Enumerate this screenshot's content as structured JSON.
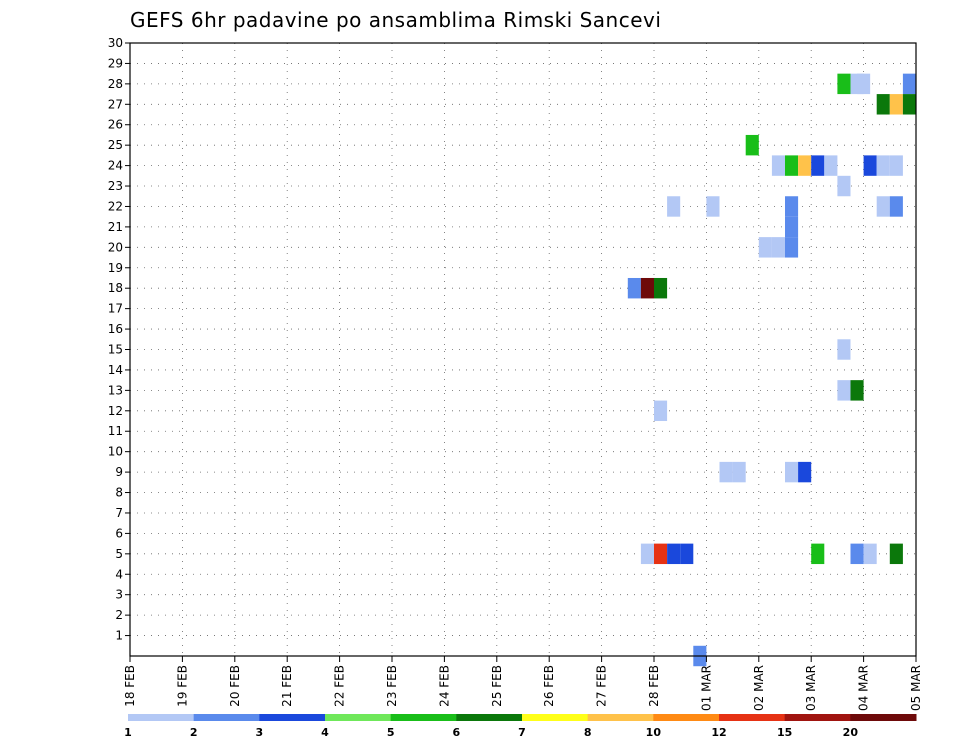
{
  "chart_data": {
    "type": "heatmap",
    "title": "GEFS 6hr padavine po ansamblima Rimski Sancevi",
    "x_ticks": [
      "18 FEB",
      "19 FEB",
      "20 FEB",
      "21 FEB",
      "22 FEB",
      "23 FEB",
      "24 FEB",
      "25 FEB",
      "26 FEB",
      "27 FEB",
      "28 FEB",
      "01 MAR",
      "02 MAR",
      "03 MAR",
      "04 MAR",
      "05 MAR"
    ],
    "y_ticks": [
      1,
      2,
      3,
      4,
      5,
      6,
      7,
      8,
      9,
      10,
      11,
      12,
      13,
      14,
      15,
      16,
      17,
      18,
      19,
      20,
      21,
      22,
      23,
      24,
      25,
      26,
      27,
      28,
      29,
      30
    ],
    "x_range_days": [
      0,
      15
    ],
    "y_range": [
      0,
      30
    ],
    "grid": true,
    "legend": {
      "placement": "bottom",
      "labels": [
        "1",
        "2",
        "3",
        "4",
        "5",
        "6",
        "7",
        "8",
        "10",
        "12",
        "15",
        "20"
      ],
      "colors": [
        "#b3c8f5",
        "#5a8aec",
        "#1a48dc",
        "#6fe85a",
        "#19be19",
        "#0b780b",
        "#ffff19",
        "#ffc24a",
        "#ff8a14",
        "#e63214",
        "#a0140f",
        "#6e0a0a"
      ]
    },
    "cells": [
      {
        "member": 28,
        "day": 13.625,
        "value": 5
      },
      {
        "member": 28,
        "day": 13.875,
        "value": 1
      },
      {
        "member": 28,
        "day": 14.0,
        "value": 1
      },
      {
        "member": 28,
        "day": 14.875,
        "value": 2
      },
      {
        "member": 27,
        "day": 14.375,
        "value": 6
      },
      {
        "member": 27,
        "day": 14.625,
        "value": 8
      },
      {
        "member": 27,
        "day": 14.875,
        "value": 6
      },
      {
        "member": 25,
        "day": 11.875,
        "value": 5
      },
      {
        "member": 24,
        "day": 12.375,
        "value": 1
      },
      {
        "member": 24,
        "day": 12.625,
        "value": 5
      },
      {
        "member": 24,
        "day": 12.875,
        "value": 8
      },
      {
        "member": 24,
        "day": 13.125,
        "value": 3
      },
      {
        "member": 24,
        "day": 13.375,
        "value": 1
      },
      {
        "member": 24,
        "day": 14.125,
        "value": 3
      },
      {
        "member": 24,
        "day": 14.375,
        "value": 1
      },
      {
        "member": 24,
        "day": 14.625,
        "value": 1
      },
      {
        "member": 23,
        "day": 13.625,
        "value": 1
      },
      {
        "member": 22,
        "day": 10.375,
        "value": 1
      },
      {
        "member": 22,
        "day": 11.125,
        "value": 1
      },
      {
        "member": 22,
        "day": 12.625,
        "value": 2
      },
      {
        "member": 22,
        "day": 14.375,
        "value": 1
      },
      {
        "member": 22,
        "day": 14.625,
        "value": 2
      },
      {
        "member": 21,
        "day": 12.625,
        "value": 2
      },
      {
        "member": 20,
        "day": 12.125,
        "value": 1
      },
      {
        "member": 20,
        "day": 12.375,
        "value": 1
      },
      {
        "member": 20,
        "day": 12.625,
        "value": 2
      },
      {
        "member": 18,
        "day": 9.625,
        "value": 2
      },
      {
        "member": 18,
        "day": 9.875,
        "value": 20
      },
      {
        "member": 18,
        "day": 10.125,
        "value": 6
      },
      {
        "member": 15,
        "day": 13.625,
        "value": 1
      },
      {
        "member": 13,
        "day": 13.625,
        "value": 1
      },
      {
        "member": 13,
        "day": 13.875,
        "value": 6
      },
      {
        "member": 12,
        "day": 10.125,
        "value": 1
      },
      {
        "member": 9,
        "day": 11.375,
        "value": 1
      },
      {
        "member": 9,
        "day": 11.625,
        "value": 1
      },
      {
        "member": 9,
        "day": 12.625,
        "value": 1
      },
      {
        "member": 9,
        "day": 12.875,
        "value": 3
      },
      {
        "member": 5,
        "day": 9.875,
        "value": 1
      },
      {
        "member": 5,
        "day": 10.125,
        "value": 12
      },
      {
        "member": 5,
        "day": 10.375,
        "value": 3
      },
      {
        "member": 5,
        "day": 10.625,
        "value": 3
      },
      {
        "member": 5,
        "day": 13.125,
        "value": 5
      },
      {
        "member": 5,
        "day": 13.875,
        "value": 2
      },
      {
        "member": 5,
        "day": 14.125,
        "value": 1
      },
      {
        "member": 5,
        "day": 14.625,
        "value": 6
      },
      {
        "member": 0,
        "day": 10.875,
        "value": 2
      }
    ]
  }
}
